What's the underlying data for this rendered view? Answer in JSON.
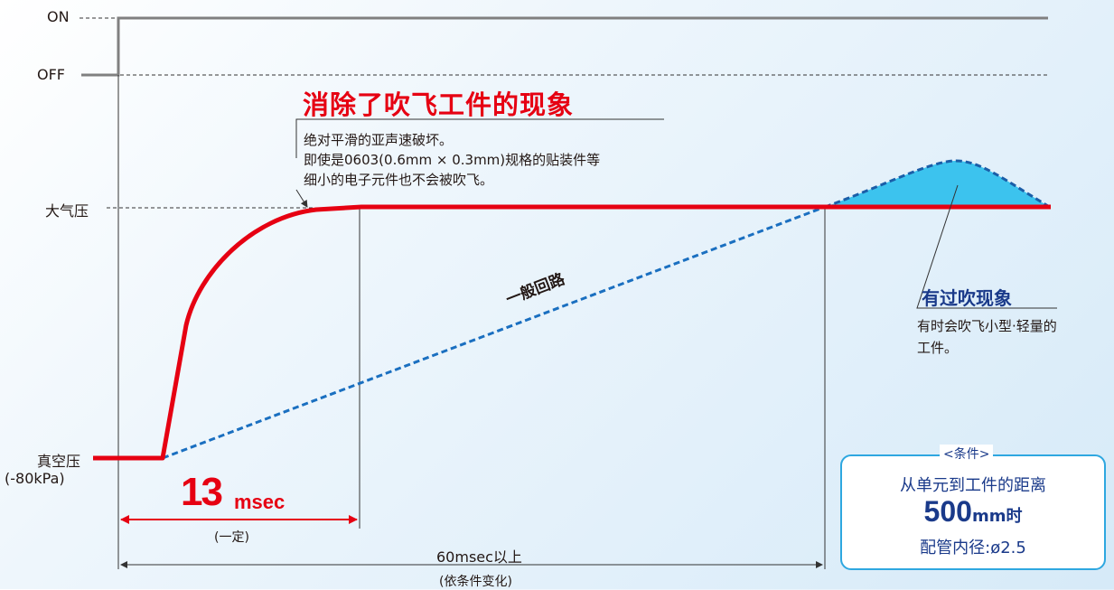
{
  "levels": {
    "on": "ON",
    "off": "OFF",
    "atmosphere": "大气压",
    "vacuum": "真空压",
    "vacuum_value": "(-80kPa)"
  },
  "headline": {
    "title": "消除了吹飞工件的现象",
    "lines": [
      "绝对平滑的亚声速破坏。",
      "即使是0603(0.6mm × 0.3mm)规格的贴装件等",
      "细小的电子元件也不会被吹飞。"
    ]
  },
  "general_circuit_label": "一般回路",
  "overblow": {
    "title": "有过吹现象",
    "lines": [
      "有时会吹飞小型·轻量的",
      "工件。"
    ]
  },
  "time_13": {
    "number": "13",
    "unit": "msec",
    "note": "(一定)"
  },
  "time_60": {
    "label": "60msec以上",
    "note": "(依条件变化)"
  },
  "conditions": {
    "tag": "<条件>",
    "line1": "从单元到工件的距离",
    "distance_number": "500",
    "distance_unit": "mm时",
    "line3_prefix": "配管内径:",
    "line3_value": "ø2.5"
  },
  "colors": {
    "red": "#e60012",
    "blue_dashed": "#1a6fc0",
    "cyan_fill": "#3cc3ee",
    "gray_signal": "#808080",
    "navy": "#1a3a8a"
  }
}
